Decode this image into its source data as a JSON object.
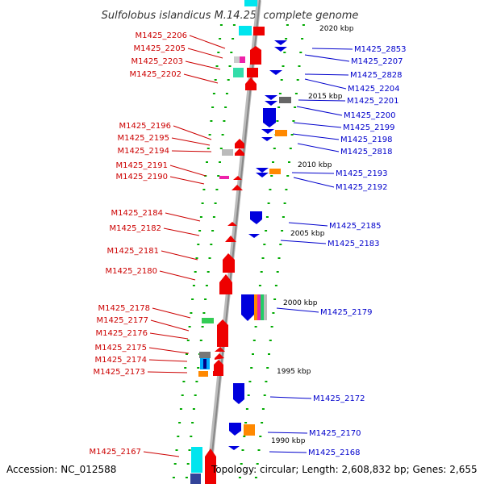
{
  "title": "Sulfolobus islandicus M.14.25, complete genome",
  "footer": {
    "accession": "Accession: NC_012588",
    "summary": "Topology: circular; Length: 2,608,832 bp; Genes: 2,655"
  },
  "colors": {
    "left_labels": "#cc0000",
    "right_labels": "#0000cc",
    "forward_genes": "#ee0000",
    "reverse_genes": "#0000dd",
    "tick_marks": "#00aa00",
    "backbone": "#999999"
  },
  "kbp_labels": [
    "2020 kbp",
    "2015 kbp",
    "2010 kbp",
    "2005 kbp",
    "2000 kbp",
    "1995 kbp",
    "1990 kbp"
  ],
  "left_genes": [
    "M1425_2206",
    "M1425_2205",
    "M1425_2203",
    "M1425_2202",
    "M1425_2196",
    "M1425_2195",
    "M1425_2194",
    "M1425_2191",
    "M1425_2190",
    "M1425_2184",
    "M1425_2182",
    "M1425_2181",
    "M1425_2180",
    "M1425_2178",
    "M1425_2177",
    "M1425_2176",
    "M1425_2175",
    "M1425_2174",
    "M1425_2173",
    "M1425_2167"
  ],
  "right_genes": [
    "M1425_2853",
    "M1425_2207",
    "M1425_2828",
    "M1425_2204",
    "M1425_2201",
    "M1425_2200",
    "M1425_2199",
    "M1425_2198",
    "M1425_2818",
    "M1425_2193",
    "M1425_2192",
    "M1425_2185",
    "M1425_2183",
    "M1425_2179",
    "M1425_2172",
    "M1425_2170",
    "M1425_2168"
  ]
}
